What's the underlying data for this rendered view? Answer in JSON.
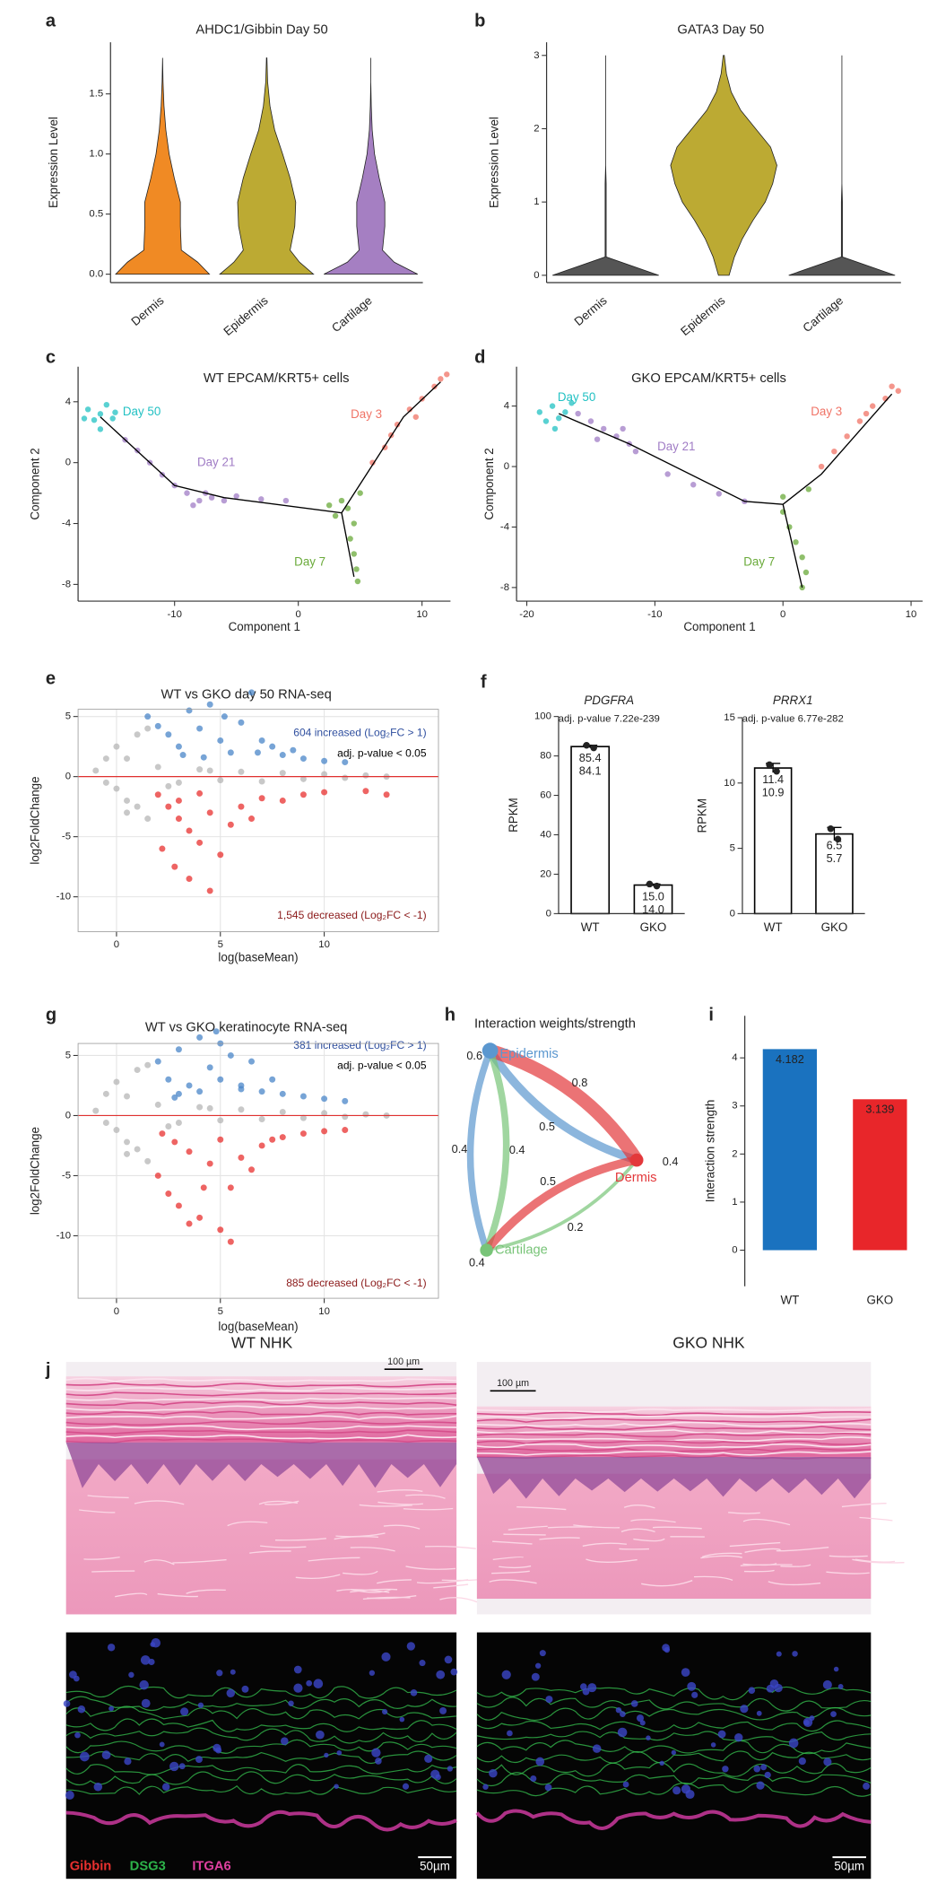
{
  "chart_data": [
    {
      "type": "violin",
      "panel": "a",
      "title": "AHDC1/Gibbin Day 50",
      "ylabel": "Expression Level",
      "categories": [
        "Dermis",
        "Epidermis",
        "Cartilage"
      ],
      "colors": [
        "#f08a24",
        "#bcaa33",
        "#a57fc2"
      ],
      "levels": [
        0,
        0.1,
        0.2,
        0.4,
        0.6,
        0.8,
        1.0,
        1.2,
        1.4,
        1.6,
        1.8
      ],
      "density": [
        [
          1,
          0.75,
          0.4,
          0.38,
          0.38,
          0.25,
          0.14,
          0.07,
          0.03,
          0.01,
          0
        ],
        [
          1,
          0.7,
          0.5,
          0.6,
          0.62,
          0.5,
          0.34,
          0.17,
          0.07,
          0.02,
          0.005
        ],
        [
          1,
          0.5,
          0.25,
          0.3,
          0.3,
          0.18,
          0.08,
          0.03,
          0.01,
          0,
          0
        ]
      ],
      "ylim": [
        -0.07,
        1.93
      ],
      "yticks": [
        {
          "value": 0,
          "label": "0.0"
        },
        0.5,
        {
          "value": 1,
          "label": "1.0"
        },
        1.5
      ]
    },
    {
      "type": "violin",
      "panel": "b",
      "title": "GATA3 Day 50",
      "ylabel": "Expression Level",
      "categories": [
        "Dermis",
        "Epidermis",
        "Cartilage"
      ],
      "colors": [
        "#555555",
        "#bcaa33",
        "#555555"
      ],
      "levels": [
        0,
        0.25,
        0.5,
        0.75,
        1.0,
        1.25,
        1.5,
        1.75,
        2.0,
        2.25,
        2.5,
        2.75,
        3.0
      ],
      "density": [
        [
          1,
          0.01,
          0.01,
          0.01,
          0.01,
          0.01,
          0,
          0,
          0,
          0,
          0,
          0,
          0
        ],
        [
          0.1,
          0.2,
          0.35,
          0.55,
          0.78,
          0.92,
          1.0,
          0.88,
          0.6,
          0.32,
          0.14,
          0.05,
          0.01
        ],
        [
          1,
          0.01,
          0.01,
          0.01,
          0.01,
          0,
          0,
          0,
          0,
          0,
          0,
          0,
          0
        ]
      ],
      "ylim": [
        -0.1,
        3.18
      ],
      "yticks": [
        0,
        1,
        2,
        3
      ]
    },
    {
      "type": "scatter",
      "panel": "c",
      "title": "WT EPCAM/KRT5+ cells",
      "xlabel": "Component 1",
      "ylabel": "Component 2",
      "xlim": [
        -17.8,
        12.3
      ],
      "ylim": [
        -9.1,
        6.3
      ],
      "xticks": [
        -10,
        0,
        10
      ],
      "yticks": [
        -8,
        -4,
        0,
        4
      ],
      "series": [
        {
          "name": "Day 3",
          "color": "#f07366",
          "x": [
            6,
            7,
            8,
            9,
            10,
            11,
            11.5,
            12,
            7.5,
            9.5
          ],
          "y": [
            0,
            1,
            2.5,
            3.5,
            4.2,
            5,
            5.5,
            5.8,
            1.8,
            3
          ]
        },
        {
          "name": "Day 7",
          "color": "#6aaa3a",
          "x": [
            4,
            4.5,
            4.2,
            4.5,
            4.7,
            4.8,
            3.5,
            2.5,
            3,
            5
          ],
          "y": [
            -3,
            -4,
            -5,
            -6,
            -7,
            -7.8,
            -2.5,
            -2.8,
            -3.5,
            -2
          ]
        },
        {
          "name": "Day 21",
          "color": "#a07cc5",
          "x": [
            -14,
            -13,
            -12,
            -11,
            -10,
            -9,
            -8,
            -7,
            -6,
            -5,
            -3,
            -1,
            -8.5,
            -7.5
          ],
          "y": [
            1.5,
            0.8,
            0,
            -0.8,
            -1.5,
            -2,
            -2.5,
            -2.3,
            -2.5,
            -2.2,
            -2.4,
            -2.5,
            -2.8,
            -2
          ]
        },
        {
          "name": "Day 50",
          "color": "#22c1c3",
          "x": [
            -17,
            -16.5,
            -16,
            -15.5,
            -15,
            -16,
            -14.8,
            -17.3
          ],
          "y": [
            3.5,
            2.8,
            3.2,
            3.8,
            2.9,
            2.2,
            3.3,
            2.9
          ]
        }
      ],
      "trajectory": {
        "x": [
          -16,
          -10,
          -6,
          3.5,
          8.5,
          11.5,
          null,
          3.5,
          4.5
        ],
        "y": [
          3,
          -1.5,
          -2.3,
          -3.3,
          3,
          5.3,
          null,
          -3.3,
          -7.5
        ]
      }
    },
    {
      "type": "scatter",
      "panel": "d",
      "title": "GKO EPCAM/KRT5+ cells",
      "xlabel": "Component 1",
      "ylabel": "Component 2",
      "xlim": [
        -20.8,
        10.9
      ],
      "ylim": [
        -8.9,
        6.6
      ],
      "xticks": [
        -20,
        -10,
        0,
        10
      ],
      "yticks": [
        -8,
        -4,
        0,
        4
      ],
      "series": [
        {
          "name": "Day 3",
          "color": "#f07366",
          "x": [
            3,
            4,
            5,
            6,
            7,
            8,
            9,
            8.5,
            6.5
          ],
          "y": [
            0,
            1,
            2,
            3,
            4,
            4.5,
            5,
            5.3,
            3.5
          ]
        },
        {
          "name": "Day 7",
          "color": "#6aaa3a",
          "x": [
            0,
            0.5,
            1,
            1.5,
            1.8,
            1.5,
            0,
            2
          ],
          "y": [
            -3,
            -4,
            -5,
            -6,
            -7,
            -8,
            -2,
            -1.5
          ]
        },
        {
          "name": "Day 21",
          "color": "#a07cc5",
          "x": [
            -16,
            -15,
            -14,
            -13,
            -12,
            -11.5,
            -14.5,
            -12.5,
            -9,
            -7,
            -5,
            -3
          ],
          "y": [
            3.5,
            3,
            2.5,
            2,
            1.5,
            1,
            1.8,
            2.5,
            -0.5,
            -1.2,
            -1.8,
            -2.3
          ]
        },
        {
          "name": "Day 50",
          "color": "#22c1c3",
          "x": [
            -18,
            -17.5,
            -18.5,
            -17,
            -16.5,
            -19,
            -17.8
          ],
          "y": [
            4,
            3.2,
            3,
            3.6,
            4.2,
            3.6,
            2.5
          ]
        }
      ],
      "trajectory": {
        "x": [
          -17.5,
          -12,
          -3,
          0,
          3,
          8.5,
          null,
          0,
          1.5
        ],
        "y": [
          3.5,
          1.5,
          -2.3,
          -2.5,
          -0.5,
          4.8,
          null,
          -2.5,
          -8
        ]
      }
    },
    {
      "type": "scatter",
      "panel": "e",
      "title": "WT vs GKO day 50 RNA-seq",
      "xlabel": "log(baseMean)",
      "ylabel": "log2FoldChange",
      "xlim": [
        -1.85,
        15.5
      ],
      "ylim": [
        -12.9,
        5.6
      ],
      "xticks": [
        0,
        5,
        10
      ],
      "yticks": [
        -10,
        -5,
        0,
        5
      ],
      "grid": true,
      "hline": 0,
      "series": [
        {
          "color": "#b5b5b5",
          "x": [
            -1,
            -0.5,
            0,
            0.5,
            1,
            1.5,
            2,
            3,
            4,
            5,
            6,
            7,
            8,
            9,
            10,
            11,
            12,
            13,
            0,
            0.5,
            1,
            1.5,
            -0.5,
            0.5,
            2.5,
            4.5
          ],
          "y": [
            0.5,
            -0.5,
            2.5,
            -2,
            3.5,
            -3.5,
            0.8,
            -0.5,
            0.6,
            -0.3,
            0.4,
            -0.4,
            0.3,
            -0.2,
            0.2,
            -0.1,
            0.1,
            0,
            -1,
            1.5,
            -2.5,
            4,
            1.5,
            -3,
            -0.8,
            0.5
          ]
        },
        {
          "color": "#4a85c8",
          "x": [
            2.5,
            3,
            3.5,
            4,
            4.5,
            5,
            5.5,
            6,
            6.5,
            7,
            7.5,
            8,
            8.5,
            9,
            10,
            11,
            3.2,
            4.2,
            5.2,
            6.8,
            2,
            1.5
          ],
          "y": [
            3.5,
            2.5,
            5.5,
            4,
            6,
            3,
            2,
            4.5,
            7,
            3,
            2.5,
            1.8,
            2.2,
            1.5,
            1.3,
            1.2,
            1.8,
            1.6,
            5,
            2,
            4.2,
            5
          ]
        },
        {
          "color": "#e8302f",
          "x": [
            2,
            2.5,
            3,
            3.5,
            4,
            4.5,
            5,
            5.5,
            6,
            6.5,
            7,
            8,
            9,
            10,
            12,
            13,
            2.2,
            2.8,
            3.5,
            4.5,
            3,
            4
          ],
          "y": [
            -1.5,
            -2.5,
            -3.5,
            -4.5,
            -5.5,
            -3,
            -6.5,
            -4,
            -2.5,
            -3.5,
            -1.8,
            -2,
            -1.5,
            -1.3,
            -1.2,
            -1.5,
            -6,
            -7.5,
            -8.5,
            -9.5,
            -2,
            -1.4
          ]
        }
      ],
      "annotations": [
        {
          "text": "604 increased (Log₂FC > 1)",
          "color": "#2f4f9f"
        },
        {
          "text": "adj. p-value < 0.05",
          "color": "#000000"
        },
        {
          "text": "1,545 decreased (Log₂FC < -1)",
          "color": "#8b1a1a"
        }
      ]
    },
    {
      "type": "bar",
      "panel": "f",
      "title": "PDGFRA",
      "subtitle": "adj. p-value 7.22e-239",
      "ylabel": "RPKM",
      "categories": [
        "WT",
        "GKO"
      ],
      "values": [
        84.75,
        14.5
      ],
      "errors": [
        0.7,
        0.5
      ],
      "replicates": [
        [
          85.4,
          84.1
        ],
        [
          15,
          14
        ]
      ],
      "replicate_labels": [
        [
          "85.4",
          "84.1"
        ],
        [
          "15.0",
          "14.0"
        ]
      ],
      "ylim": [
        0,
        100
      ],
      "yticks": [
        0,
        20,
        40,
        60,
        80,
        100
      ]
    },
    {
      "type": "bar",
      "title": "PRRX1",
      "subtitle": "adj. p-value 6.77e-282",
      "ylabel": "RPKM",
      "categories": [
        "WT",
        "GKO"
      ],
      "values": [
        11.15,
        6.1
      ],
      "errors": [
        0.35,
        0.5
      ],
      "replicates": [
        [
          11.4,
          10.9
        ],
        [
          6.5,
          5.7
        ]
      ],
      "replicate_labels": [
        [
          "11.4",
          "10.9"
        ],
        [
          "6.5",
          "5.7"
        ]
      ],
      "ylim": [
        0,
        15
      ],
      "yticks": [
        0,
        5,
        10,
        15
      ]
    },
    {
      "type": "scatter",
      "panel": "g",
      "title": "WT vs GKO keratinocyte RNA-seq",
      "xlabel": "log(baseMean)",
      "ylabel": "log2FoldChange",
      "xlim": [
        -1.85,
        15.5
      ],
      "ylim": [
        -15.2,
        6
      ],
      "xticks": [
        0,
        5,
        10
      ],
      "yticks": [
        -10,
        -5,
        0,
        5
      ],
      "grid": true,
      "hline": 0,
      "series": [
        {
          "color": "#b5b5b5",
          "x": [
            -1,
            -0.5,
            0,
            0.5,
            1,
            1.5,
            2,
            3,
            4,
            5,
            6,
            7,
            8,
            9,
            10,
            11,
            12,
            13,
            0,
            0.5,
            1,
            1.5,
            -0.5,
            0.5,
            2.5,
            4.5
          ],
          "y": [
            0.4,
            -0.6,
            2.8,
            -2.2,
            3.8,
            -3.8,
            0.9,
            -0.6,
            0.7,
            -0.4,
            0.5,
            -0.3,
            0.3,
            -0.2,
            0.2,
            -0.1,
            0.1,
            0,
            -1.2,
            1.6,
            -2.8,
            4.2,
            1.8,
            -3.2,
            -0.9,
            0.6
          ]
        },
        {
          "color": "#4a85c8",
          "x": [
            2,
            2.5,
            3,
            3.5,
            4,
            4.5,
            5,
            5.5,
            6,
            6.5,
            7,
            7.5,
            8,
            9,
            10,
            11,
            3,
            4,
            5,
            6,
            2.8,
            4.8
          ],
          "y": [
            4.5,
            3,
            5.5,
            2.5,
            6.5,
            4,
            3,
            5,
            2.5,
            4.5,
            2,
            3,
            1.8,
            1.6,
            1.4,
            1.2,
            1.8,
            2,
            6,
            2.2,
            1.5,
            7
          ]
        },
        {
          "color": "#e8302f",
          "x": [
            2,
            2.5,
            3,
            3.5,
            4,
            4.5,
            5,
            5.5,
            6,
            6.5,
            7,
            7.5,
            8,
            9,
            10,
            11,
            2.2,
            2.8,
            3.5,
            4.2,
            5,
            5.5
          ],
          "y": [
            -5,
            -6.5,
            -7.5,
            -3,
            -8.5,
            -4,
            -9.5,
            -6,
            -3.5,
            -4.5,
            -2.5,
            -2,
            -1.8,
            -1.5,
            -1.3,
            -1.2,
            -1.5,
            -2.2,
            -9,
            -6,
            -2,
            -10.5
          ]
        }
      ],
      "annotations": [
        {
          "text": "381 increased (Log₂FC > 1)",
          "color": "#2f4f9f"
        },
        {
          "text": "adj. p-value < 0.05",
          "color": "#000000"
        },
        {
          "text": "885 decreased (Log₂FC < -1)",
          "color": "#8b1a1a"
        }
      ]
    },
    {
      "type": "network",
      "panel": "h",
      "title": "Interaction weights/strength",
      "nodes": [
        {
          "label": "Epidermis",
          "value": 0.6,
          "color": "#5b97cf"
        },
        {
          "label": "Dermis",
          "value": 0.4,
          "color": "#e3383b"
        },
        {
          "label": "Cartilage",
          "value": 0.4,
          "color": "#78c478"
        }
      ],
      "edges": [
        {
          "from": 0,
          "to": 1,
          "weight": 0.5
        },
        {
          "from": 1,
          "to": 0,
          "weight": 0.8
        },
        {
          "from": 0,
          "to": 2,
          "weight": 0.4
        },
        {
          "from": 2,
          "to": 0,
          "weight": 0.4
        },
        {
          "from": 2,
          "to": 1,
          "weight": 0.2
        },
        {
          "from": 1,
          "to": 2,
          "weight": 0.5
        }
      ]
    },
    {
      "type": "bar",
      "panel": "i",
      "ylabel": "Interaction strength",
      "categories": [
        "WT",
        "GKO"
      ],
      "values": [
        4.182,
        3.139
      ],
      "colors": [
        "#1a72bf",
        "#e8262a"
      ],
      "ylim": [
        -0.75,
        4.875
      ],
      "yticks": [
        0,
        1,
        2,
        3,
        4
      ]
    }
  ],
  "panel_j": {
    "panel": "j",
    "titles": [
      "WT NHK",
      "GKO NHK"
    ],
    "he_scale_bars": [
      "100 µm",
      "100 µm"
    ],
    "if_scale_bars": [
      "50µm",
      "50µm"
    ],
    "stains": [
      "Gibbin",
      "DSG3",
      "ITGA6"
    ]
  }
}
